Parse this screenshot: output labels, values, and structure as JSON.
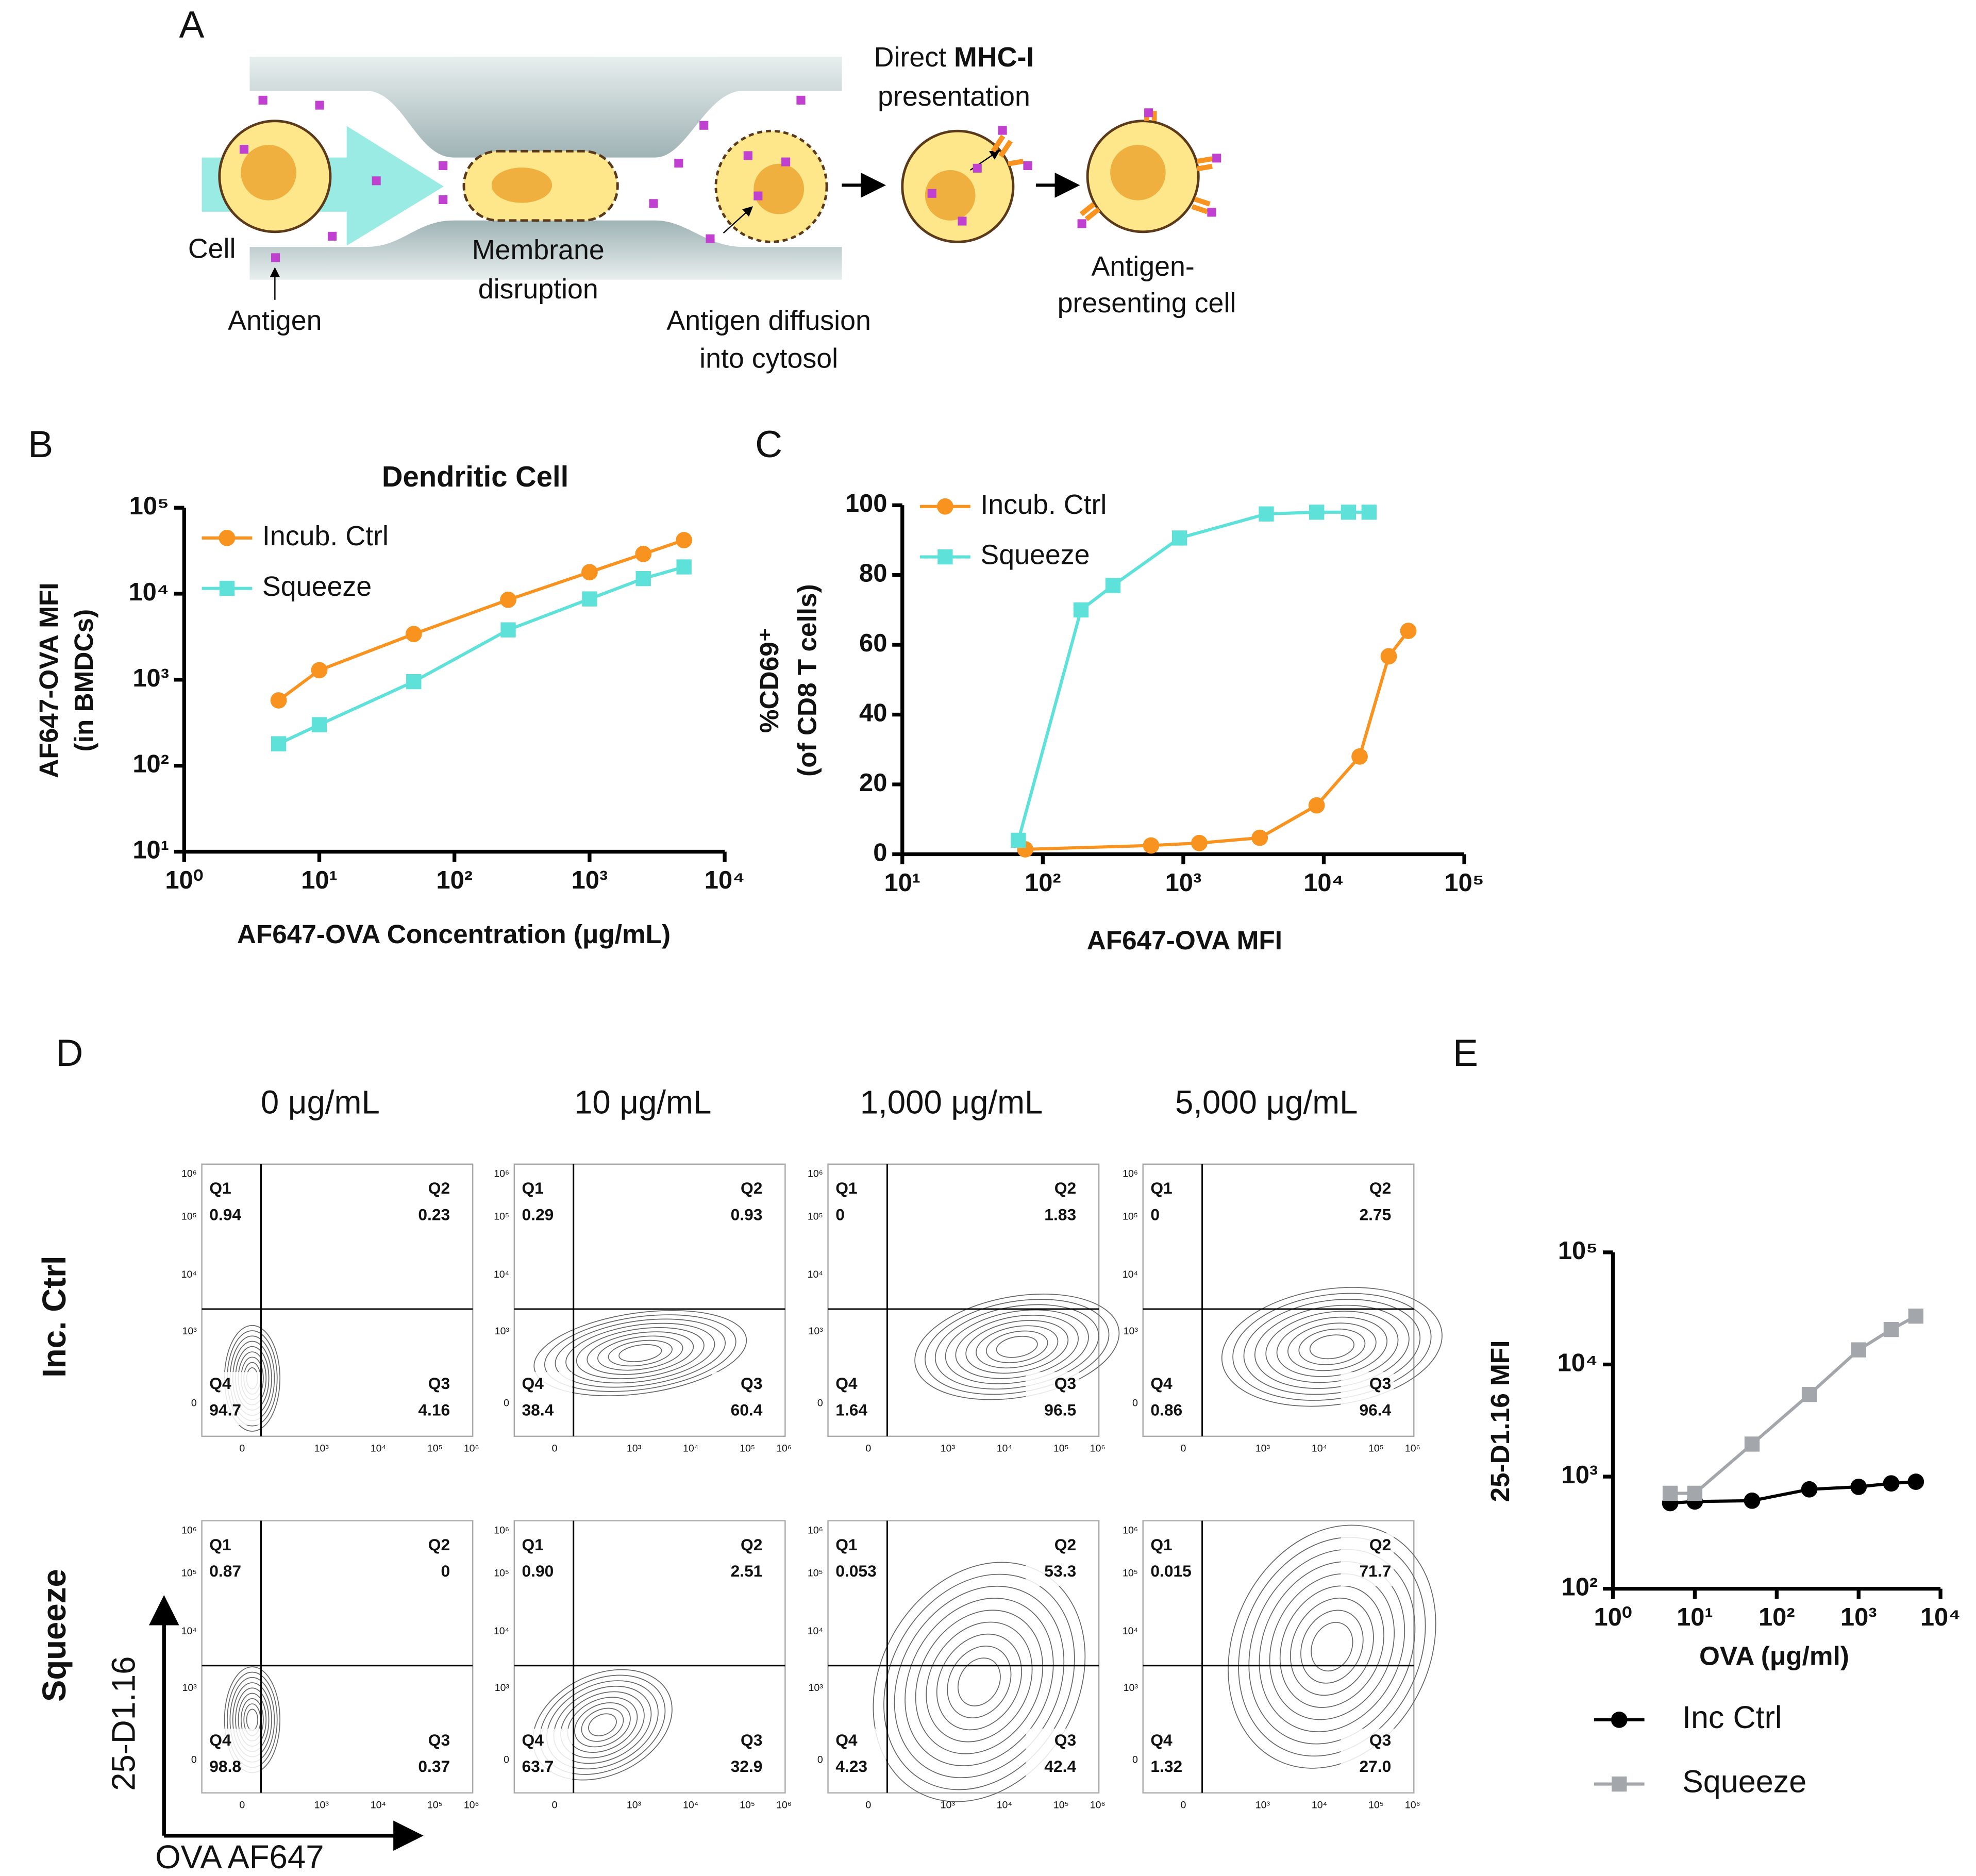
{
  "panels": [
    "A",
    "B",
    "C",
    "D",
    "E"
  ],
  "diagram": {
    "cell": "Cell",
    "antigen": "Antigen",
    "membrane": [
      "Membrane",
      "disruption"
    ],
    "diffusion": [
      "Antigen diffusion",
      "into cytosol"
    ],
    "direct": "Direct ",
    "mhc": "MHC-I",
    "presentation": "presentation",
    "apc": [
      "Antigen-",
      "presenting cell"
    ]
  },
  "chart_data": [
    {
      "type": "line",
      "title": "Dendritic Cell",
      "x_label": "AF647-OVA Concentration (μg/mL)",
      "y_label": [
        "AF647-OVA MFI",
        "(in BMDCs)"
      ],
      "xscale": "log",
      "yscale": "log",
      "xlim": [
        1,
        10000
      ],
      "ylim": [
        10,
        100000
      ],
      "xticks": [
        {
          "value": 1,
          "label": "10⁰"
        },
        {
          "value": 10,
          "label": "10¹"
        },
        {
          "value": 100,
          "label": "10²"
        },
        {
          "value": 1000,
          "label": "10³"
        },
        {
          "value": 10000,
          "label": "10⁴"
        }
      ],
      "yticks": [
        {
          "value": 10,
          "label": "10¹"
        },
        {
          "value": 100,
          "label": "10²"
        },
        {
          "value": 1000,
          "label": "10³"
        },
        {
          "value": 10000,
          "label": "10⁴"
        },
        {
          "value": 100000,
          "label": "10⁵"
        }
      ],
      "legend": "upper left",
      "series": [
        {
          "name": "Incub. Ctrl",
          "color": "#f7931e",
          "marker": "circle",
          "x": [
            5,
            10,
            50,
            250,
            1000,
            2500,
            5000
          ],
          "values": [
            575,
            1290,
            3400,
            8500,
            17800,
            29000,
            42000
          ]
        },
        {
          "name": "Squeeze",
          "color": "#5de1d9",
          "marker": "square",
          "x": [
            5,
            10,
            50,
            250,
            1000,
            2500,
            5000
          ],
          "values": [
            180,
            300,
            950,
            3800,
            8700,
            15000,
            20500
          ]
        }
      ]
    },
    {
      "type": "line",
      "x_label": "AF647-OVA MFI",
      "y_label": [
        "%CD69⁺",
        "(of CD8 T cells)"
      ],
      "xscale": "log",
      "yscale": "linear",
      "xlim": [
        10,
        100000
      ],
      "ylim": [
        0,
        100
      ],
      "xticks": [
        {
          "value": 10,
          "label": "10¹"
        },
        {
          "value": 100,
          "label": "10²"
        },
        {
          "value": 1000,
          "label": "10³"
        },
        {
          "value": 10000,
          "label": "10⁴"
        },
        {
          "value": 100000,
          "label": "10⁵"
        }
      ],
      "yticks": [
        0,
        20,
        40,
        60,
        80,
        100
      ],
      "legend": "upper left",
      "series": [
        {
          "name": "Incub. Ctrl",
          "color": "#f7931e",
          "marker": "circle",
          "x": [
            75,
            590,
            1300,
            3500,
            8900,
            18000,
            29000,
            40000
          ],
          "values": [
            1.4,
            2.5,
            3.2,
            4.7,
            14,
            28,
            56.7,
            64
          ]
        },
        {
          "name": "Squeeze",
          "color": "#5de1d9",
          "marker": "square",
          "x": [
            67,
            187,
            316,
            940,
            3900,
            8900,
            15000,
            21000
          ],
          "values": [
            4,
            70,
            77,
            90.6,
            97.5,
            98,
            98,
            98
          ]
        }
      ]
    },
    {
      "type": "line",
      "x_label": "OVA (μg/ml)",
      "y_label": [
        "25-D1.16 MFI"
      ],
      "xscale": "log",
      "yscale": "log",
      "xlim": [
        1,
        10000
      ],
      "ylim": [
        100,
        100000
      ],
      "xticks": [
        {
          "value": 1,
          "label": "10⁰"
        },
        {
          "value": 10,
          "label": "10¹"
        },
        {
          "value": 100,
          "label": "10²"
        },
        {
          "value": 1000,
          "label": "10³"
        },
        {
          "value": 10000,
          "label": "10⁴"
        }
      ],
      "yticks": [
        {
          "value": 100,
          "label": "10²"
        },
        {
          "value": 1000,
          "label": "10³"
        },
        {
          "value": 10000,
          "label": "10⁴"
        },
        {
          "value": 100000,
          "label": "10⁵"
        }
      ],
      "legend": "below",
      "series": [
        {
          "name": "Inc Ctrl",
          "color": "#000000",
          "marker": "circle",
          "x": [
            5,
            10,
            50,
            250,
            1000,
            2500,
            5000
          ],
          "values": [
            580,
            600,
            610,
            770,
            810,
            870,
            900
          ]
        },
        {
          "name": "Squeeze",
          "color": "#a3a7ab",
          "marker": "square",
          "x": [
            5,
            10,
            50,
            250,
            1000,
            2500,
            5000
          ],
          "values": [
            710,
            710,
            1950,
            5400,
            13500,
            20500,
            27000
          ]
        }
      ]
    }
  ],
  "flow": {
    "columns": [
      "0 μg/mL",
      "10 μg/mL",
      "1,000 μg/mL",
      "5,000 μg/mL"
    ],
    "rows": [
      "Inc. Ctrl",
      "Squeeze"
    ],
    "y_axis_label": "25-D1.16",
    "x_axis_label": "OVA AF647",
    "y_ticks": [
      "10⁶",
      "10⁵",
      "10⁴",
      "10³",
      "0"
    ],
    "x_ticks": [
      "0",
      "10³",
      "10⁴",
      "10⁵",
      "10⁶"
    ],
    "quadrant_names": [
      "Q1",
      "Q2",
      "Q3",
      "Q4"
    ],
    "plots": [
      [
        [
          "0.94",
          "0.23",
          "4.16",
          "94.7"
        ],
        [
          "0.29",
          "0.93",
          "60.4",
          "38.4"
        ],
        [
          "0",
          "1.83",
          "96.5",
          "1.64"
        ],
        [
          "0",
          "2.75",
          "96.4",
          "0.86"
        ]
      ],
      [
        [
          "0.87",
          "0",
          "0.37",
          "98.8"
        ],
        [
          "0.90",
          "2.51",
          "32.9",
          "63.7"
        ],
        [
          "0.053",
          "53.3",
          "42.4",
          "4.23"
        ],
        [
          "0.015",
          "71.7",
          "27.0",
          "1.32"
        ]
      ]
    ]
  }
}
